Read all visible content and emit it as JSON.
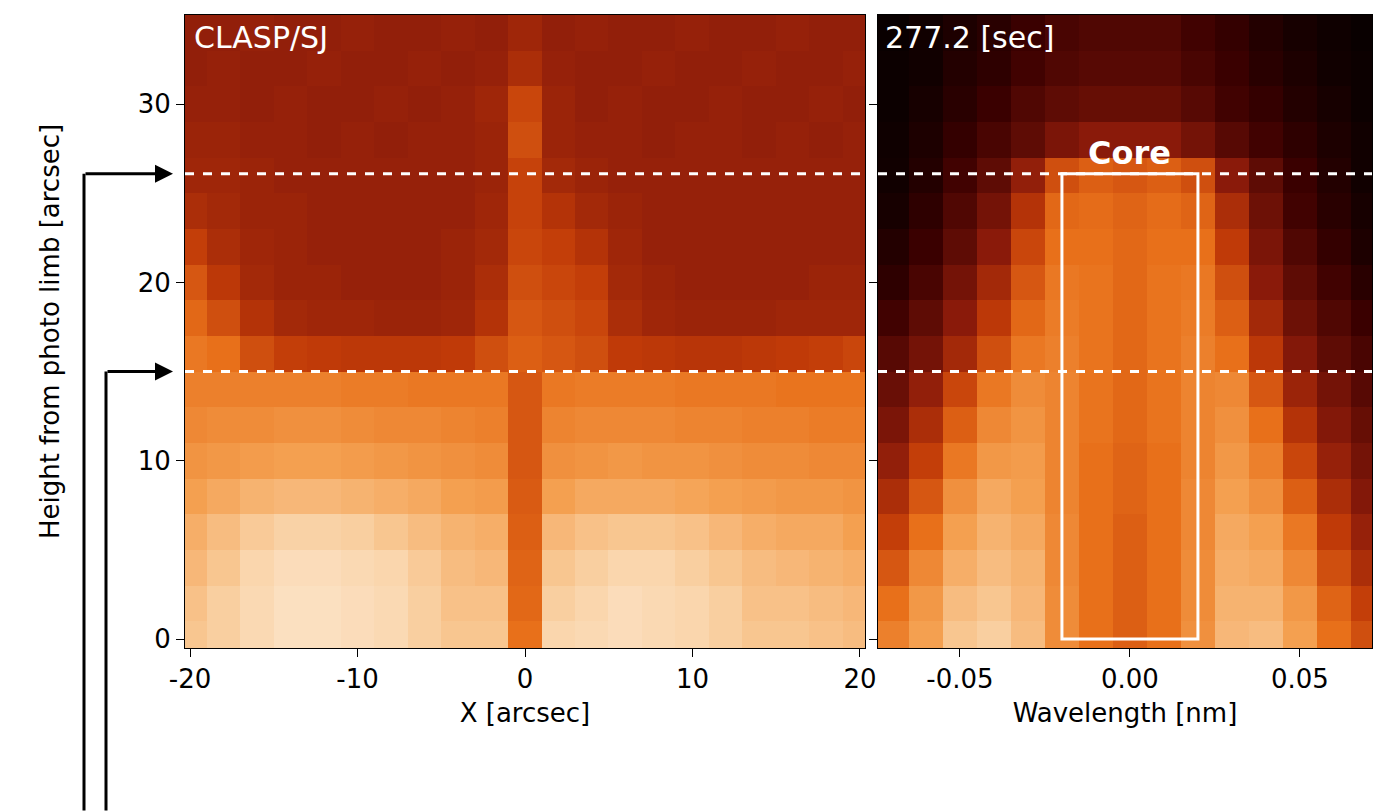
{
  "chart_data": [
    {
      "type": "heatmap",
      "label": "CLASP/SJ",
      "x_label": "X [arcsec]",
      "y_label": "Height from photo limb [arcsec]",
      "xlim": [
        -20.3,
        20.3
      ],
      "xticks": [
        -20,
        -10,
        0,
        10,
        20
      ],
      "ylim": [
        -0.5,
        35
      ],
      "yticks": [
        0,
        10,
        20,
        30
      ],
      "zlim": [
        0,
        1
      ],
      "hlines": [
        26.1,
        15.0
      ],
      "x": [
        -20,
        -18,
        -16,
        -14,
        -12,
        -10,
        -8,
        -6,
        -4,
        -2,
        0,
        2,
        4,
        6,
        8,
        10,
        12,
        14,
        16,
        18,
        20
      ],
      "y": [
        0,
        2,
        4,
        6,
        8,
        10,
        12,
        14,
        16,
        18,
        20,
        22,
        24,
        26,
        28,
        30,
        32,
        34
      ],
      "z": [
        [
          0.88,
          0.9,
          0.93,
          0.95,
          0.95,
          0.94,
          0.93,
          0.9,
          0.88,
          0.88,
          0.68,
          0.92,
          0.93,
          0.94,
          0.93,
          0.92,
          0.9,
          0.88,
          0.88,
          0.87,
          0.86
        ],
        [
          0.87,
          0.9,
          0.93,
          0.95,
          0.95,
          0.94,
          0.93,
          0.9,
          0.87,
          0.87,
          0.66,
          0.9,
          0.92,
          0.94,
          0.93,
          0.92,
          0.9,
          0.87,
          0.87,
          0.86,
          0.85
        ],
        [
          0.85,
          0.88,
          0.92,
          0.94,
          0.94,
          0.93,
          0.92,
          0.89,
          0.86,
          0.85,
          0.65,
          0.88,
          0.9,
          0.92,
          0.92,
          0.9,
          0.88,
          0.86,
          0.85,
          0.84,
          0.83
        ],
        [
          0.83,
          0.86,
          0.89,
          0.91,
          0.91,
          0.9,
          0.88,
          0.86,
          0.84,
          0.83,
          0.64,
          0.85,
          0.87,
          0.88,
          0.88,
          0.87,
          0.85,
          0.83,
          0.82,
          0.82,
          0.8
        ],
        [
          0.8,
          0.82,
          0.84,
          0.85,
          0.85,
          0.84,
          0.83,
          0.82,
          0.8,
          0.79,
          0.63,
          0.8,
          0.82,
          0.82,
          0.82,
          0.81,
          0.8,
          0.79,
          0.78,
          0.78,
          0.77
        ],
        [
          0.77,
          0.78,
          0.79,
          0.8,
          0.8,
          0.79,
          0.78,
          0.77,
          0.76,
          0.75,
          0.62,
          0.76,
          0.77,
          0.78,
          0.77,
          0.77,
          0.76,
          0.75,
          0.75,
          0.74,
          0.74
        ],
        [
          0.74,
          0.75,
          0.75,
          0.76,
          0.76,
          0.75,
          0.74,
          0.74,
          0.73,
          0.72,
          0.62,
          0.73,
          0.74,
          0.74,
          0.74,
          0.73,
          0.73,
          0.72,
          0.72,
          0.71,
          0.71
        ],
        [
          0.72,
          0.72,
          0.72,
          0.72,
          0.72,
          0.71,
          0.71,
          0.7,
          0.7,
          0.7,
          0.62,
          0.7,
          0.71,
          0.71,
          0.71,
          0.7,
          0.7,
          0.7,
          0.69,
          0.69,
          0.69
        ],
        [
          0.7,
          0.68,
          0.6,
          0.56,
          0.55,
          0.54,
          0.54,
          0.54,
          0.55,
          0.6,
          0.64,
          0.62,
          0.6,
          0.55,
          0.54,
          0.53,
          0.53,
          0.54,
          0.55,
          0.56,
          0.58
        ],
        [
          0.66,
          0.6,
          0.52,
          0.48,
          0.47,
          0.47,
          0.46,
          0.46,
          0.47,
          0.52,
          0.62,
          0.6,
          0.58,
          0.5,
          0.47,
          0.46,
          0.46,
          0.46,
          0.47,
          0.47,
          0.47
        ],
        [
          0.62,
          0.54,
          0.48,
          0.46,
          0.46,
          0.45,
          0.45,
          0.45,
          0.46,
          0.5,
          0.6,
          0.58,
          0.56,
          0.48,
          0.46,
          0.45,
          0.45,
          0.45,
          0.45,
          0.46,
          0.46
        ],
        [
          0.56,
          0.5,
          0.47,
          0.46,
          0.45,
          0.45,
          0.45,
          0.45,
          0.46,
          0.48,
          0.58,
          0.56,
          0.52,
          0.47,
          0.45,
          0.45,
          0.45,
          0.45,
          0.45,
          0.45,
          0.45
        ],
        [
          0.5,
          0.48,
          0.46,
          0.46,
          0.45,
          0.45,
          0.45,
          0.45,
          0.45,
          0.47,
          0.57,
          0.52,
          0.48,
          0.46,
          0.45,
          0.45,
          0.45,
          0.45,
          0.45,
          0.45,
          0.45
        ],
        [
          0.47,
          0.47,
          0.46,
          0.45,
          0.45,
          0.45,
          0.45,
          0.45,
          0.45,
          0.46,
          0.57,
          0.48,
          0.46,
          0.45,
          0.45,
          0.45,
          0.45,
          0.45,
          0.45,
          0.45,
          0.45
        ],
        [
          0.46,
          0.46,
          0.45,
          0.45,
          0.44,
          0.45,
          0.44,
          0.45,
          0.45,
          0.46,
          0.6,
          0.46,
          0.45,
          0.45,
          0.44,
          0.45,
          0.45,
          0.44,
          0.45,
          0.44,
          0.45
        ],
        [
          0.45,
          0.45,
          0.44,
          0.45,
          0.44,
          0.44,
          0.45,
          0.44,
          0.45,
          0.47,
          0.58,
          0.46,
          0.44,
          0.45,
          0.44,
          0.44,
          0.45,
          0.44,
          0.44,
          0.45,
          0.44
        ],
        [
          0.44,
          0.45,
          0.44,
          0.44,
          0.45,
          0.44,
          0.44,
          0.45,
          0.44,
          0.45,
          0.5,
          0.45,
          0.44,
          0.44,
          0.45,
          0.44,
          0.44,
          0.45,
          0.44,
          0.44,
          0.45
        ],
        [
          0.44,
          0.44,
          0.45,
          0.44,
          0.44,
          0.45,
          0.44,
          0.44,
          0.45,
          0.44,
          0.47,
          0.44,
          0.45,
          0.44,
          0.44,
          0.45,
          0.44,
          0.44,
          0.45,
          0.44,
          0.44
        ]
      ]
    },
    {
      "type": "heatmap",
      "label": "277.2 [sec]",
      "x_label": "Wavelength [nm]",
      "tick_labels": "x",
      "xlim": [
        -0.0741,
        0.0712
      ],
      "xticks": [
        -0.05,
        {
          "value": 0,
          "label": "0.00"
        },
        0.05
      ],
      "ylim": [
        -0.5,
        35
      ],
      "yticks": [
        0,
        10,
        20,
        30
      ],
      "zlim": [
        0,
        1
      ],
      "hlines": [
        26.1,
        15.0
      ],
      "box": {
        "label": "Core",
        "x": [
          -0.02,
          0.02
        ],
        "y": [
          0,
          26.1
        ]
      },
      "x": [
        -0.07,
        -0.06,
        -0.05,
        -0.04,
        -0.03,
        -0.02,
        -0.01,
        0,
        0.01,
        0.02,
        0.03,
        0.04,
        0.05,
        0.06,
        0.07
      ],
      "y": [
        0,
        2,
        4,
        6,
        8,
        10,
        12,
        14,
        16,
        18,
        20,
        22,
        24,
        26,
        28,
        30,
        32,
        34
      ],
      "z": [
        [
          0.72,
          0.8,
          0.88,
          0.9,
          0.86,
          0.75,
          0.68,
          0.64,
          0.68,
          0.76,
          0.85,
          0.86,
          0.8,
          0.68,
          0.6
        ],
        [
          0.68,
          0.78,
          0.86,
          0.88,
          0.85,
          0.75,
          0.68,
          0.64,
          0.68,
          0.75,
          0.84,
          0.84,
          0.78,
          0.65,
          0.56
        ],
        [
          0.62,
          0.74,
          0.83,
          0.86,
          0.84,
          0.74,
          0.68,
          0.64,
          0.68,
          0.75,
          0.83,
          0.82,
          0.74,
          0.6,
          0.5
        ],
        [
          0.56,
          0.68,
          0.8,
          0.84,
          0.82,
          0.74,
          0.68,
          0.64,
          0.68,
          0.74,
          0.82,
          0.8,
          0.7,
          0.55,
          0.45
        ],
        [
          0.5,
          0.62,
          0.76,
          0.82,
          0.8,
          0.73,
          0.68,
          0.65,
          0.68,
          0.74,
          0.8,
          0.76,
          0.64,
          0.5,
          0.4
        ],
        [
          0.44,
          0.56,
          0.7,
          0.78,
          0.79,
          0.73,
          0.68,
          0.65,
          0.68,
          0.73,
          0.78,
          0.72,
          0.58,
          0.45,
          0.36
        ],
        [
          0.38,
          0.5,
          0.64,
          0.74,
          0.77,
          0.73,
          0.69,
          0.66,
          0.69,
          0.73,
          0.76,
          0.68,
          0.52,
          0.4,
          0.32
        ],
        [
          0.33,
          0.44,
          0.58,
          0.7,
          0.75,
          0.73,
          0.69,
          0.66,
          0.69,
          0.73,
          0.74,
          0.62,
          0.46,
          0.36,
          0.28
        ],
        [
          0.28,
          0.36,
          0.48,
          0.6,
          0.7,
          0.72,
          0.69,
          0.66,
          0.69,
          0.72,
          0.68,
          0.54,
          0.4,
          0.3,
          0.24
        ],
        [
          0.22,
          0.3,
          0.42,
          0.54,
          0.66,
          0.71,
          0.69,
          0.66,
          0.69,
          0.71,
          0.64,
          0.48,
          0.34,
          0.26,
          0.2
        ],
        [
          0.16,
          0.24,
          0.36,
          0.48,
          0.62,
          0.7,
          0.69,
          0.66,
          0.69,
          0.7,
          0.6,
          0.42,
          0.3,
          0.22,
          0.14
        ],
        [
          0.12,
          0.2,
          0.3,
          0.42,
          0.58,
          0.68,
          0.68,
          0.66,
          0.68,
          0.68,
          0.55,
          0.38,
          0.26,
          0.18,
          0.1
        ],
        [
          0.08,
          0.16,
          0.26,
          0.36,
          0.52,
          0.66,
          0.67,
          0.65,
          0.67,
          0.65,
          0.5,
          0.34,
          0.22,
          0.14,
          0.08
        ],
        [
          0.06,
          0.12,
          0.22,
          0.3,
          0.44,
          0.6,
          0.64,
          0.62,
          0.64,
          0.6,
          0.42,
          0.3,
          0.2,
          0.12,
          0.06
        ],
        [
          0.05,
          0.1,
          0.18,
          0.24,
          0.3,
          0.38,
          0.42,
          0.42,
          0.42,
          0.36,
          0.28,
          0.22,
          0.16,
          0.1,
          0.06
        ],
        [
          0.04,
          0.08,
          0.14,
          0.2,
          0.26,
          0.3,
          0.32,
          0.32,
          0.32,
          0.28,
          0.22,
          0.18,
          0.12,
          0.08,
          0.04
        ],
        [
          0.04,
          0.06,
          0.12,
          0.16,
          0.22,
          0.26,
          0.28,
          0.28,
          0.28,
          0.24,
          0.2,
          0.14,
          0.1,
          0.06,
          0.04
        ],
        [
          0.03,
          0.06,
          0.1,
          0.14,
          0.2,
          0.24,
          0.26,
          0.26,
          0.26,
          0.22,
          0.18,
          0.12,
          0.08,
          0.05,
          0.03
        ]
      ]
    }
  ]
}
